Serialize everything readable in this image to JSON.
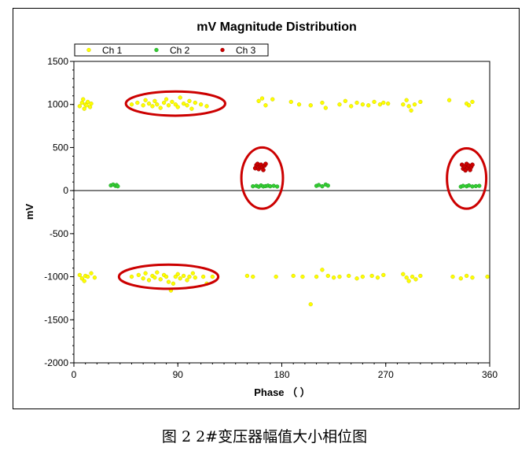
{
  "figure_caption": "图 2    2#变压器幅值大小相位图",
  "chart_data": {
    "type": "scatter",
    "title": "mV Magnitude Distribution",
    "xlabel": "Phase （ ）",
    "ylabel": "mV",
    "xlim": [
      0,
      360
    ],
    "ylim": [
      -2000,
      1500
    ],
    "xticks": [
      "0",
      "90",
      "180",
      "270",
      "360"
    ],
    "yticks": [
      "1500",
      "1000",
      "500",
      "0",
      "-500",
      "-1000",
      "-1500",
      "-2000"
    ],
    "grid": true,
    "legend_position": "top-left",
    "colors": {
      "ch1": "#ffff00",
      "ch2": "#33cc33",
      "ch3": "#cc0000",
      "annotation": "#cc0000"
    },
    "series": [
      {
        "name": "Ch 1",
        "color": "#ffff00",
        "points": [
          [
            5,
            980
          ],
          [
            7,
            1020
          ],
          [
            8,
            1060
          ],
          [
            9,
            950
          ],
          [
            10,
            1000
          ],
          [
            11,
            990
          ],
          [
            12,
            1030
          ],
          [
            14,
            970
          ],
          [
            15,
            1010
          ],
          [
            50,
            1000
          ],
          [
            55,
            1020
          ],
          [
            60,
            990
          ],
          [
            62,
            1050
          ],
          [
            65,
            1010
          ],
          [
            68,
            980
          ],
          [
            70,
            1040
          ],
          [
            72,
            1000
          ],
          [
            75,
            960
          ],
          [
            78,
            1020
          ],
          [
            80,
            1060
          ],
          [
            82,
            990
          ],
          [
            85,
            1030
          ],
          [
            88,
            1000
          ],
          [
            90,
            970
          ],
          [
            92,
            1080
          ],
          [
            95,
            1010
          ],
          [
            98,
            990
          ],
          [
            100,
            1040
          ],
          [
            102,
            950
          ],
          [
            105,
            1020
          ],
          [
            110,
            1000
          ],
          [
            115,
            980
          ],
          [
            160,
            1040
          ],
          [
            163,
            1070
          ],
          [
            166,
            990
          ],
          [
            172,
            1060
          ],
          [
            188,
            1030
          ],
          [
            195,
            1000
          ],
          [
            205,
            990
          ],
          [
            215,
            1020
          ],
          [
            218,
            960
          ],
          [
            230,
            1000
          ],
          [
            235,
            1040
          ],
          [
            240,
            980
          ],
          [
            245,
            1020
          ],
          [
            250,
            1000
          ],
          [
            255,
            990
          ],
          [
            260,
            1030
          ],
          [
            265,
            1000
          ],
          [
            268,
            1020
          ],
          [
            272,
            1010
          ],
          [
            285,
            1000
          ],
          [
            288,
            1050
          ],
          [
            290,
            980
          ],
          [
            292,
            930
          ],
          [
            295,
            1000
          ],
          [
            300,
            1030
          ],
          [
            325,
            1050
          ],
          [
            340,
            1010
          ],
          [
            342,
            990
          ],
          [
            345,
            1030
          ],
          [
            5,
            -980
          ],
          [
            7,
            -1020
          ],
          [
            9,
            -1050
          ],
          [
            10,
            -990
          ],
          [
            12,
            -1000
          ],
          [
            15,
            -960
          ],
          [
            18,
            -1010
          ],
          [
            50,
            -1000
          ],
          [
            56,
            -980
          ],
          [
            60,
            -1020
          ],
          [
            62,
            -960
          ],
          [
            65,
            -1040
          ],
          [
            68,
            -990
          ],
          [
            70,
            -1010
          ],
          [
            72,
            -950
          ],
          [
            75,
            -1030
          ],
          [
            78,
            -980
          ],
          [
            80,
            -1000
          ],
          [
            82,
            -1060
          ],
          [
            84,
            -1160
          ],
          [
            86,
            -1080
          ],
          [
            88,
            -1000
          ],
          [
            90,
            -970
          ],
          [
            92,
            -1020
          ],
          [
            95,
            -990
          ],
          [
            98,
            -1040
          ],
          [
            100,
            -1000
          ],
          [
            103,
            -960
          ],
          [
            105,
            -1010
          ],
          [
            112,
            -1000
          ],
          [
            115,
            -1080
          ],
          [
            120,
            -1000
          ],
          [
            150,
            -990
          ],
          [
            155,
            -1000
          ],
          [
            175,
            -1000
          ],
          [
            190,
            -990
          ],
          [
            198,
            -1000
          ],
          [
            205,
            -1320
          ],
          [
            210,
            -1000
          ],
          [
            215,
            -920
          ],
          [
            220,
            -990
          ],
          [
            225,
            -1010
          ],
          [
            230,
            -1000
          ],
          [
            238,
            -990
          ],
          [
            245,
            -1020
          ],
          [
            250,
            -1000
          ],
          [
            258,
            -990
          ],
          [
            263,
            -1010
          ],
          [
            268,
            -980
          ],
          [
            285,
            -970
          ],
          [
            288,
            -1010
          ],
          [
            290,
            -1050
          ],
          [
            293,
            -1000
          ],
          [
            296,
            -1030
          ],
          [
            300,
            -990
          ],
          [
            328,
            -1000
          ],
          [
            335,
            -1020
          ],
          [
            340,
            -990
          ],
          [
            345,
            -1010
          ],
          [
            358,
            -1000
          ]
        ]
      },
      {
        "name": "Ch 2",
        "color": "#33cc33",
        "points": [
          [
            32,
            60
          ],
          [
            34,
            70
          ],
          [
            36,
            55
          ],
          [
            37,
            65
          ],
          [
            38,
            50
          ],
          [
            155,
            50
          ],
          [
            158,
            55
          ],
          [
            160,
            45
          ],
          [
            162,
            60
          ],
          [
            164,
            48
          ],
          [
            166,
            52
          ],
          [
            168,
            58
          ],
          [
            170,
            50
          ],
          [
            173,
            55
          ],
          [
            176,
            47
          ],
          [
            210,
            55
          ],
          [
            212,
            65
          ],
          [
            215,
            50
          ],
          [
            218,
            70
          ],
          [
            220,
            58
          ],
          [
            335,
            45
          ],
          [
            337,
            55
          ],
          [
            340,
            50
          ],
          [
            342,
            60
          ],
          [
            345,
            48
          ],
          [
            348,
            52
          ],
          [
            351,
            55
          ]
        ]
      },
      {
        "name": "Ch 3",
        "color": "#cc0000",
        "points": [
          [
            157,
            260
          ],
          [
            158,
            295
          ],
          [
            159,
            310
          ],
          [
            160,
            250
          ],
          [
            161,
            280
          ],
          [
            162,
            300
          ],
          [
            163,
            270
          ],
          [
            164,
            240
          ],
          [
            165,
            290
          ],
          [
            166,
            310
          ],
          [
            336,
            300
          ],
          [
            337,
            255
          ],
          [
            338,
            280
          ],
          [
            339,
            235
          ],
          [
            340,
            310
          ],
          [
            341,
            265
          ],
          [
            342,
            290
          ],
          [
            343,
            240
          ],
          [
            344,
            275
          ],
          [
            345,
            300
          ]
        ]
      }
    ],
    "annotations": [
      {
        "shape": "ellipse",
        "cx": 88,
        "cy": 1010,
        "rx_deg": 43,
        "ry_mv": 140
      },
      {
        "shape": "ellipse",
        "cx": 163,
        "cy": 145,
        "rx_deg": 18,
        "ry_mv": 355
      },
      {
        "shape": "ellipse",
        "cx": 340,
        "cy": 140,
        "rx_deg": 17,
        "ry_mv": 350
      },
      {
        "shape": "ellipse",
        "cx": 82,
        "cy": -1000,
        "rx_deg": 43,
        "ry_mv": 140
      }
    ]
  }
}
